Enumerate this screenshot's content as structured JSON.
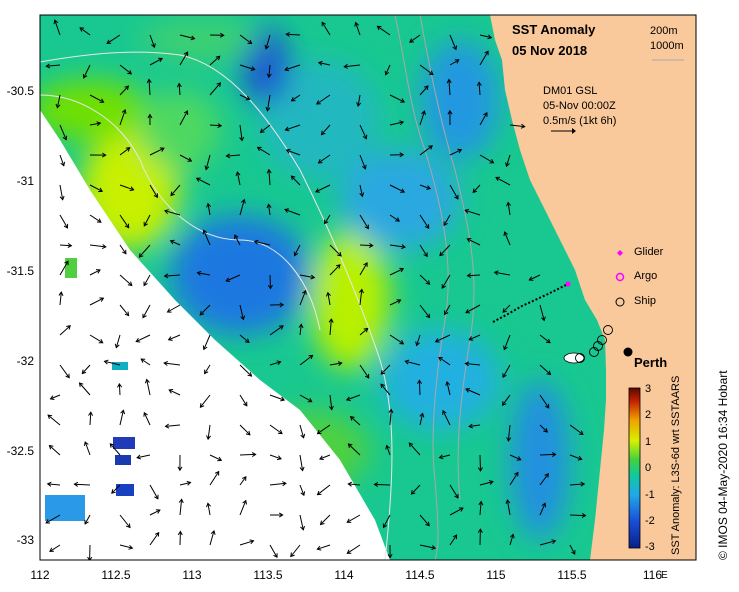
{
  "map": {
    "title_line1": "SST Anomaly",
    "title_line2": "05 Nov 2018",
    "depth_contours": [
      "200m",
      "1000m"
    ],
    "product_line1": "DM01 GSL",
    "product_line2": "05-Nov 00:00Z",
    "velocity_scale": "0.5m/s (1kt 6h)",
    "legend": [
      {
        "label": "Glider",
        "color": "#ff00ff",
        "symbol": "diamond"
      },
      {
        "label": "Argo",
        "color": "#ff00ff",
        "symbol": "circle"
      },
      {
        "label": "Ship",
        "color": "#000000",
        "symbol": "circle"
      }
    ],
    "place_label": "Perth",
    "x_ticks": [
      "112",
      "112.5",
      "113",
      "113.5",
      "114",
      "114.5",
      "115",
      "115.5",
      "116"
    ],
    "x_suffix": "E",
    "y_ticks": [
      "-30.5",
      "-31",
      "-31.5",
      "-32",
      "-32.5",
      "-33"
    ],
    "colorbar_ticks": [
      "3",
      "2",
      "1",
      "0",
      "-1",
      "-2",
      "-3"
    ],
    "colorbar_label": "SST Anomaly: L3S-6d wrt SSTAARS",
    "credit": "© IMOS 04-May-2020 16:34 Hobart",
    "colors": {
      "land": "#f9c89b",
      "cold": "#1b6ad8",
      "warm": "#d8f000",
      "mid": "#10c8a0"
    }
  }
}
